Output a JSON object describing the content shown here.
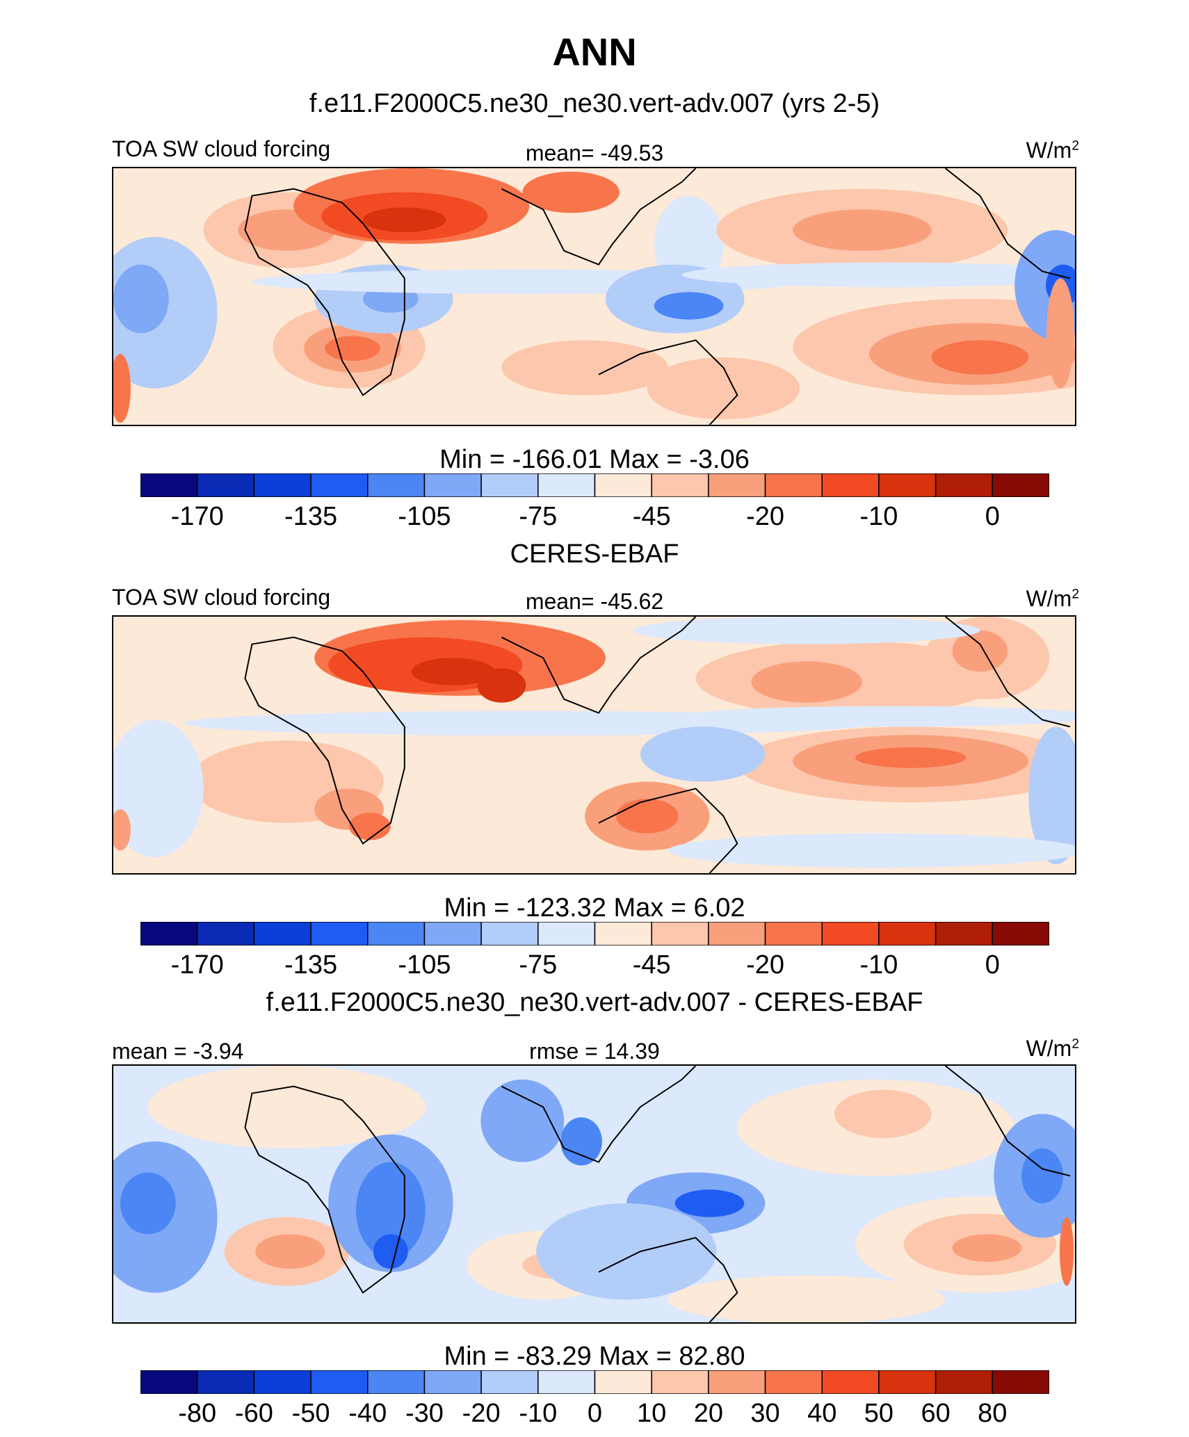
{
  "header": {
    "title": "ANN",
    "subtitle": "f.e11.F2000C5.ne30_ne30.vert-adv.007 (yrs 2-5)"
  },
  "palettes": {
    "main": [
      "#08087f",
      "#0a2bb5",
      "#0b3fd9",
      "#1f5cf2",
      "#4b86f4",
      "#7fa8f6",
      "#b3cdf9",
      "#dce8fb",
      "#fde9d8",
      "#fcc7ac",
      "#f99f7c",
      "#f8744b",
      "#f24a23",
      "#d8330e",
      "#b01e08",
      "#880a04"
    ],
    "diff": [
      "#08087f",
      "#0a2bb5",
      "#0b3fd9",
      "#1f5cf2",
      "#4b86f4",
      "#7fa8f6",
      "#b3cdf9",
      "#dce8fb",
      "#fde9d8",
      "#fcc7ac",
      "#f99f7c",
      "#f8744b",
      "#f24a23",
      "#d8330e",
      "#b01e08",
      "#880a04"
    ],
    "land_outline": "#000000"
  },
  "panels": [
    {
      "left_label": "TOA SW cloud forcing",
      "stat_label": "mean= -49.53",
      "units_base": "W/m",
      "units_exp": "2",
      "minmax": "Min = -166.01 Max =  -3.06",
      "colorbar": "main",
      "ticks": [
        "-170",
        "-135",
        "-105",
        "-75",
        "-45",
        "-20",
        "-10",
        "0"
      ]
    },
    {
      "title": "CERES-EBAF",
      "left_label": "TOA SW cloud forcing",
      "stat_label": "mean= -45.62",
      "units_base": "W/m",
      "units_exp": "2",
      "minmax": "Min = -123.32 Max =   6.02",
      "colorbar": "main",
      "ticks": [
        "-170",
        "-135",
        "-105",
        "-75",
        "-45",
        "-20",
        "-10",
        "0"
      ]
    },
    {
      "title": "f.e11.F2000C5.ne30_ne30.vert-adv.007 - CERES-EBAF",
      "left_label": "mean =  -3.94",
      "stat_label": "rmse =  14.39",
      "units_base": "W/m",
      "units_exp": "2",
      "minmax": "Min = -83.29 Max =  82.80",
      "colorbar": "diff",
      "ticks": [
        "-80",
        "-60",
        "-50",
        "-40",
        "-30",
        "-20",
        "-10",
        "0",
        "10",
        "20",
        "30",
        "40",
        "50",
        "60",
        "80"
      ]
    }
  ],
  "chart_data": [
    {
      "type": "heatmap",
      "title": "ANN",
      "subtitle": "f.e11.F2000C5.ne30_ne30.vert-adv.007 (yrs 2-5)",
      "variable": "TOA SW cloud forcing",
      "units": "W/m2",
      "mean": -49.53,
      "min": -166.01,
      "max": -3.06,
      "colorbar_ticks": [
        -170,
        -135,
        -105,
        -75,
        -45,
        -20,
        -10,
        0
      ]
    },
    {
      "type": "heatmap",
      "title": "CERES-EBAF",
      "variable": "TOA SW cloud forcing",
      "units": "W/m2",
      "mean": -45.62,
      "min": -123.32,
      "max": 6.02,
      "colorbar_ticks": [
        -170,
        -135,
        -105,
        -75,
        -45,
        -20,
        -10,
        0
      ]
    },
    {
      "type": "heatmap",
      "title": "f.e11.F2000C5.ne30_ne30.vert-adv.007 - CERES-EBAF",
      "units": "W/m2",
      "mean": -3.94,
      "rmse": 14.39,
      "min": -83.29,
      "max": 82.8,
      "colorbar_ticks": [
        -80,
        -60,
        -50,
        -40,
        -30,
        -20,
        -10,
        0,
        10,
        20,
        30,
        40,
        50,
        60,
        80
      ]
    }
  ]
}
